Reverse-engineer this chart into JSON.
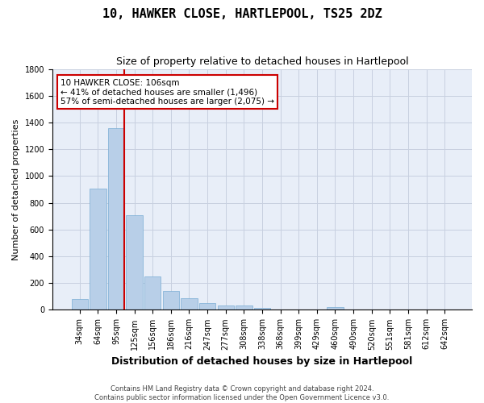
{
  "title": "10, HAWKER CLOSE, HARTLEPOOL, TS25 2DZ",
  "subtitle": "Size of property relative to detached houses in Hartlepool",
  "xlabel": "Distribution of detached houses by size in Hartlepool",
  "ylabel": "Number of detached properties",
  "categories": [
    "34sqm",
    "64sqm",
    "95sqm",
    "125sqm",
    "156sqm",
    "186sqm",
    "216sqm",
    "247sqm",
    "277sqm",
    "308sqm",
    "338sqm",
    "368sqm",
    "399sqm",
    "429sqm",
    "460sqm",
    "490sqm",
    "520sqm",
    "551sqm",
    "581sqm",
    "612sqm",
    "642sqm"
  ],
  "values": [
    82,
    905,
    1360,
    710,
    248,
    140,
    85,
    52,
    30,
    30,
    17,
    0,
    0,
    0,
    18,
    0,
    0,
    0,
    0,
    0,
    0
  ],
  "bar_color": "#b8cfe8",
  "bar_edge_color": "#7aadd4",
  "vline_x_index": 2,
  "vline_color": "#cc0000",
  "annotation_line1": "10 HAWKER CLOSE: 106sqm",
  "annotation_line2": "← 41% of detached houses are smaller (1,496)",
  "annotation_line3": "57% of semi-detached houses are larger (2,075) →",
  "annotation_box_color": "#cc0000",
  "ylim": [
    0,
    1800
  ],
  "yticks": [
    0,
    200,
    400,
    600,
    800,
    1000,
    1200,
    1400,
    1600,
    1800
  ],
  "grid_color": "#c8d0e0",
  "bg_color": "#e8eef8",
  "footer": "Contains HM Land Registry data © Crown copyright and database right 2024.\nContains public sector information licensed under the Open Government Licence v3.0.",
  "title_fontsize": 11,
  "subtitle_fontsize": 9,
  "ylabel_fontsize": 8,
  "xlabel_fontsize": 9,
  "tick_fontsize": 7,
  "footer_fontsize": 6,
  "annotation_fontsize": 7.5
}
